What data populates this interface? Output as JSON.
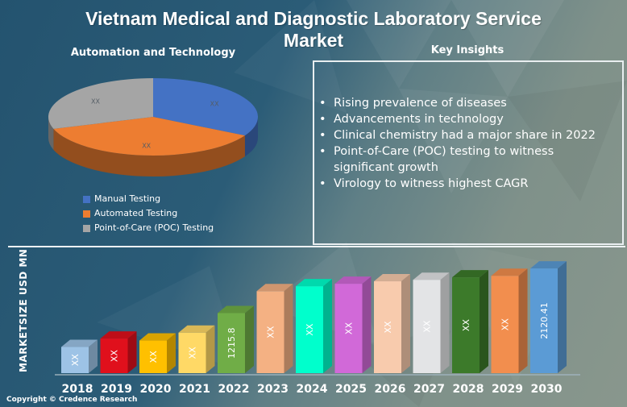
{
  "title_line1": "Vietnam Medical and Diagnostic Laboratory Service",
  "title_line2": "Market",
  "pie_section": {
    "heading": "Automation and Technology"
  },
  "key_insights": {
    "heading": "Key Insights",
    "items": [
      "Rising prevalence of diseases",
      "Advancements in technology",
      "Clinical chemistry had a major share in 2022",
      "Point-of-Care (POC) testing to witness significant growth",
      "Virology to witness highest CAGR"
    ],
    "bullet": "•"
  },
  "copyright": "Copyright © Credence Research",
  "chart_data": [
    {
      "type": "pie",
      "title": "Automation and Technology",
      "labels": [
        "Manual Testing",
        "Automated Testing",
        "Point-of-Care (POC) Testing"
      ],
      "values": [
        33,
        37,
        30
      ],
      "data_labels": [
        "XX",
        "XX",
        "XX"
      ],
      "colors": [
        "#4472c4",
        "#ed7d31",
        "#a5a5a5"
      ],
      "legend": "bottom-left",
      "style": "3d"
    },
    {
      "type": "bar",
      "title": "",
      "xlabel": "",
      "ylabel": "MARKETSIZE USD MN",
      "categories": [
        "2018",
        "2019",
        "2020",
        "2021",
        "2022",
        "2023",
        "2024",
        "2025",
        "2026",
        "2027",
        "2028",
        "2029",
        "2030"
      ],
      "values": [
        530,
        700,
        660,
        820,
        1215.8,
        1660,
        1760,
        1810,
        1860,
        1890,
        1940,
        1970,
        2120.41
      ],
      "data_labels": [
        "XX",
        "XX",
        "XX",
        "XX",
        "1215.8",
        "XX",
        "XX",
        "XX",
        "XX",
        "XX",
        "XX",
        "XX",
        "2120.41"
      ],
      "colors": [
        "#9dc3e6",
        "#e0101c",
        "#ffc000",
        "#ffd966",
        "#70ad47",
        "#f4b183",
        "#00ffcc",
        "#d169d8",
        "#f8cbad",
        "#e3e4e6",
        "#3c7a2a",
        "#f28e4e",
        "#5b9bd5"
      ],
      "ylim": [
        0,
        2400
      ],
      "grid": false,
      "legend": "none",
      "style": "3d"
    }
  ]
}
